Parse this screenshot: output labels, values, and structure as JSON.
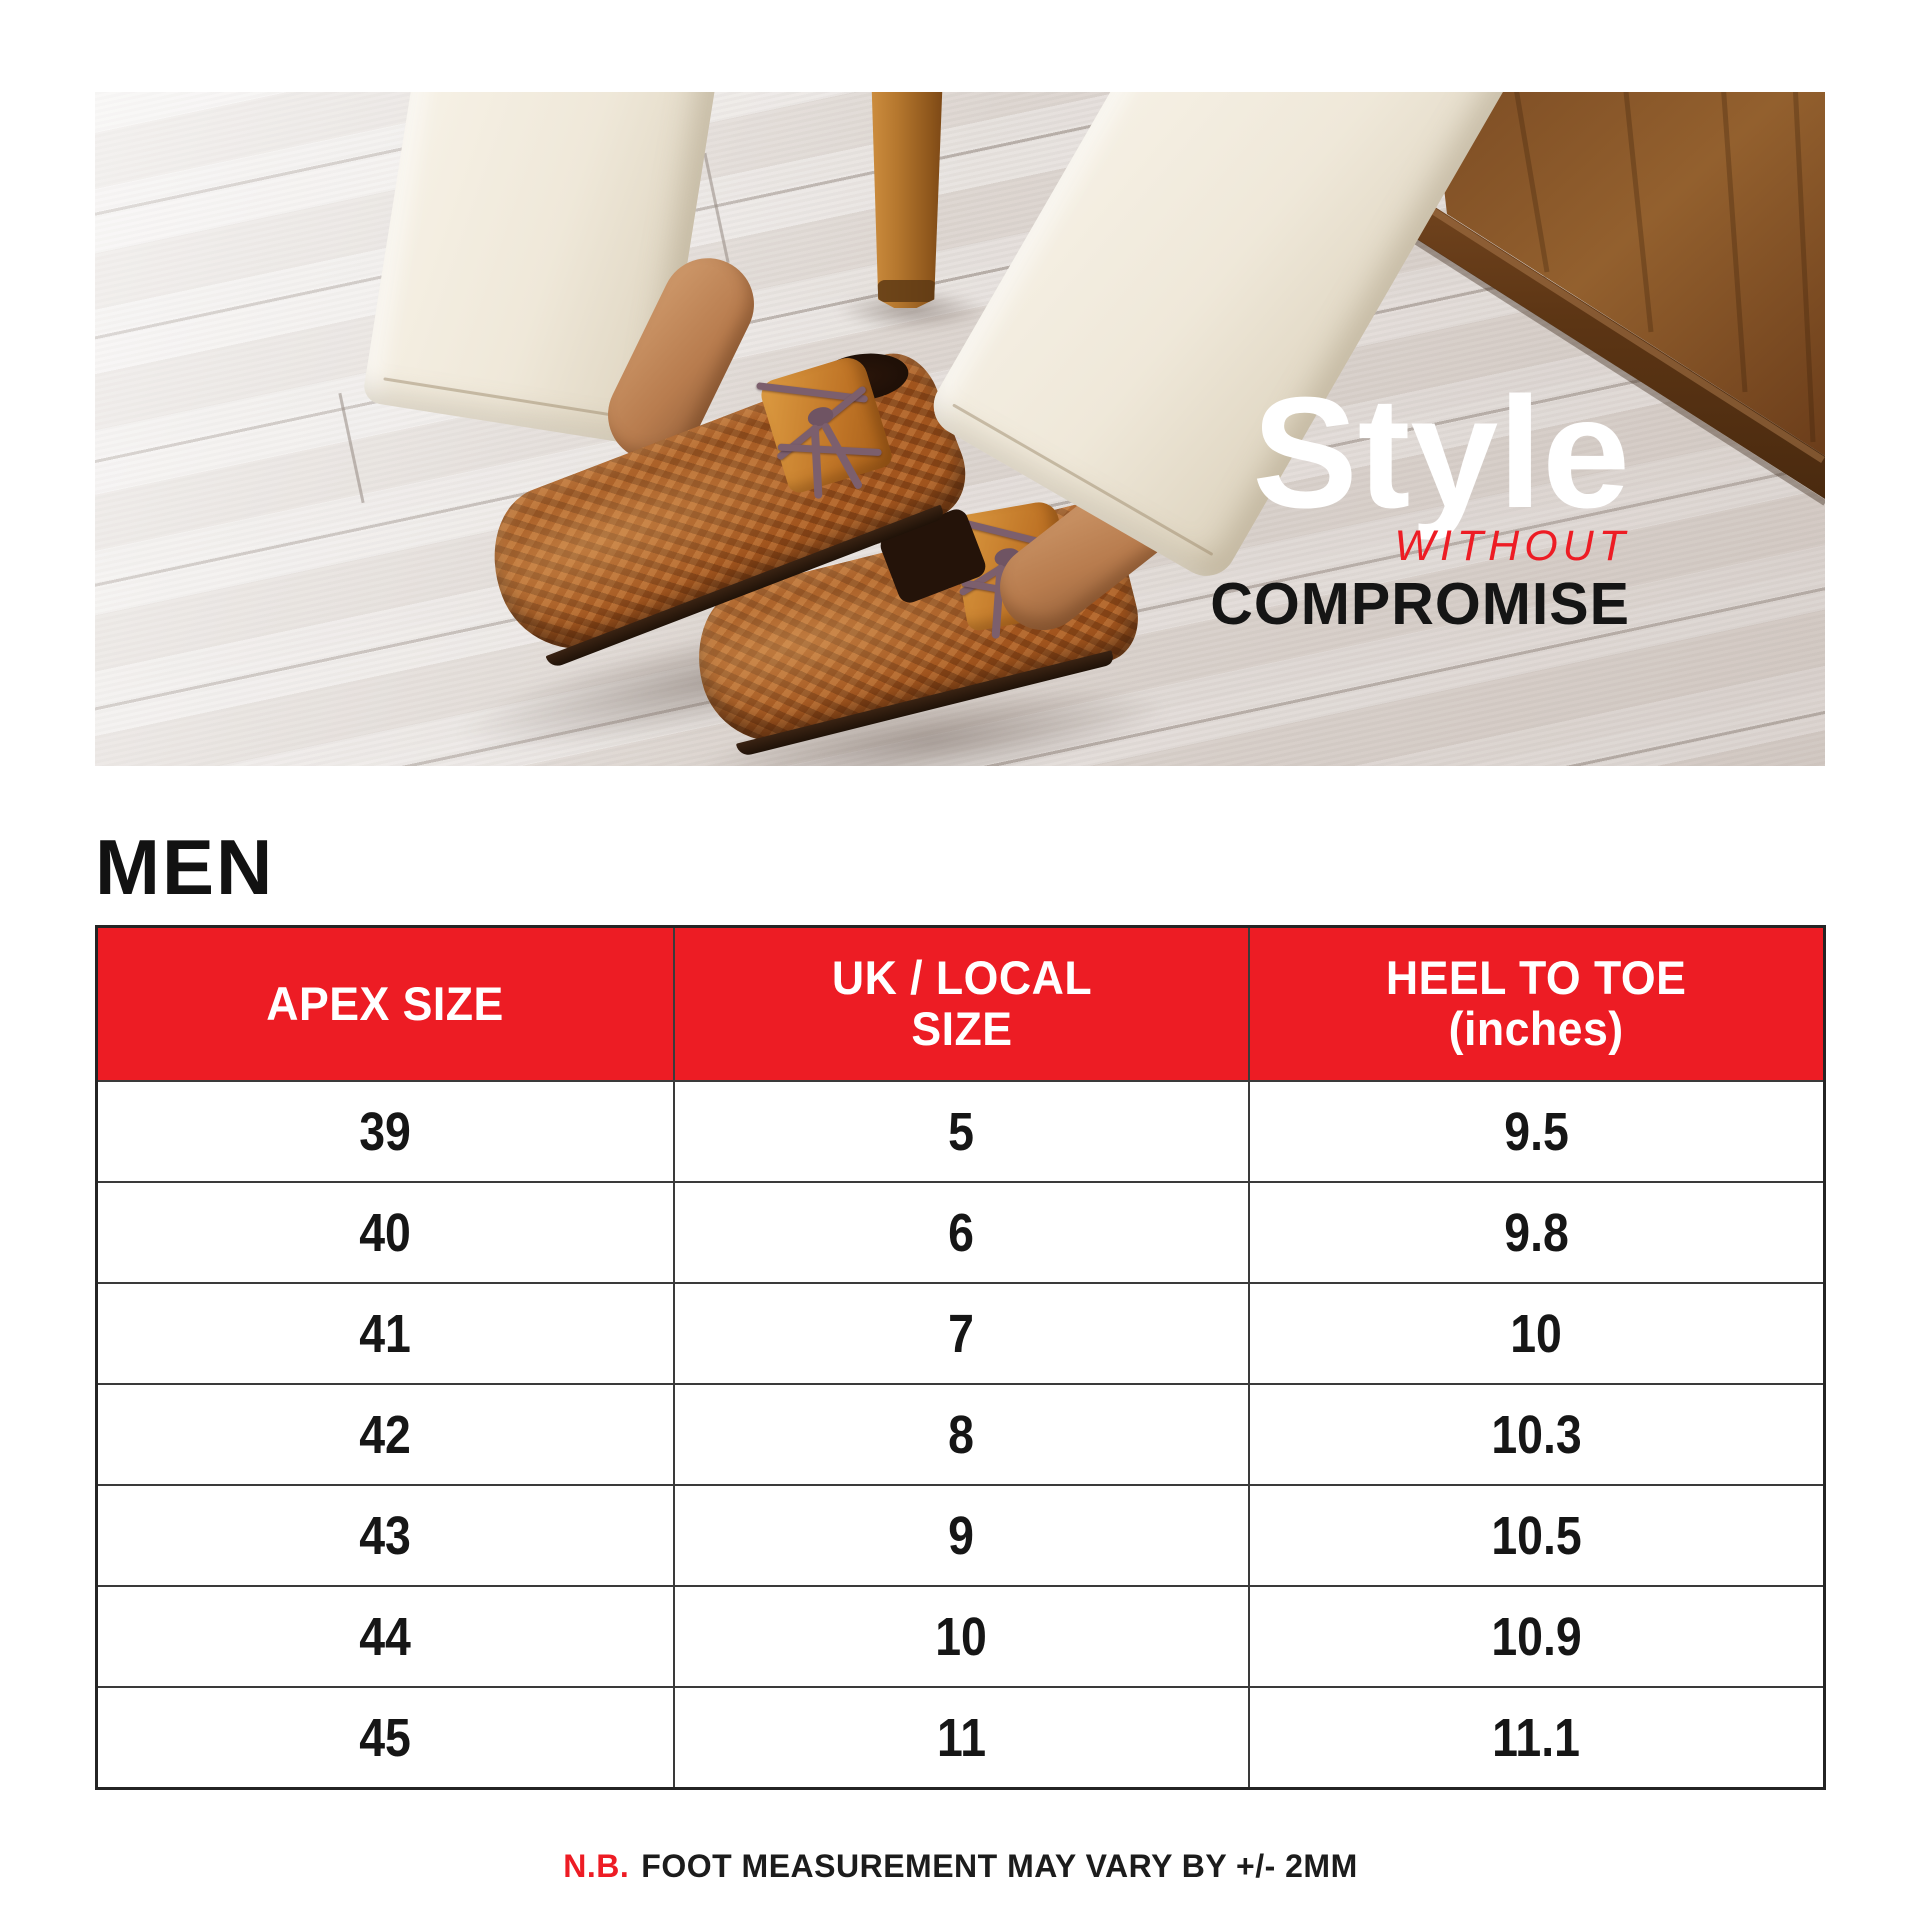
{
  "hero": {
    "headline": {
      "line1": "Style",
      "line2": "WITHOUT",
      "line3": "COMPROMISE"
    }
  },
  "section_title": "MEN",
  "table": {
    "headers": [
      "APEX SIZE",
      "UK / LOCAL\nSIZE",
      "HEEL TO TOE\n(inches)"
    ],
    "rows": [
      [
        "39",
        "5",
        "9.5"
      ],
      [
        "40",
        "6",
        "9.8"
      ],
      [
        "41",
        "7",
        "10"
      ],
      [
        "42",
        "8",
        "10.3"
      ],
      [
        "43",
        "9",
        "10.5"
      ],
      [
        "44",
        "10",
        "10.9"
      ],
      [
        "45",
        "11",
        "11.1"
      ]
    ]
  },
  "footnote": {
    "prefix": "N.B.",
    "text": "FOOT MEASUREMENT MAY VARY BY +/- 2MM"
  },
  "colors": {
    "accent_red": "#ED1C24",
    "table_border": "#3a3a3a",
    "text_black": "#141414",
    "hero_text_white": "#ffffff"
  }
}
